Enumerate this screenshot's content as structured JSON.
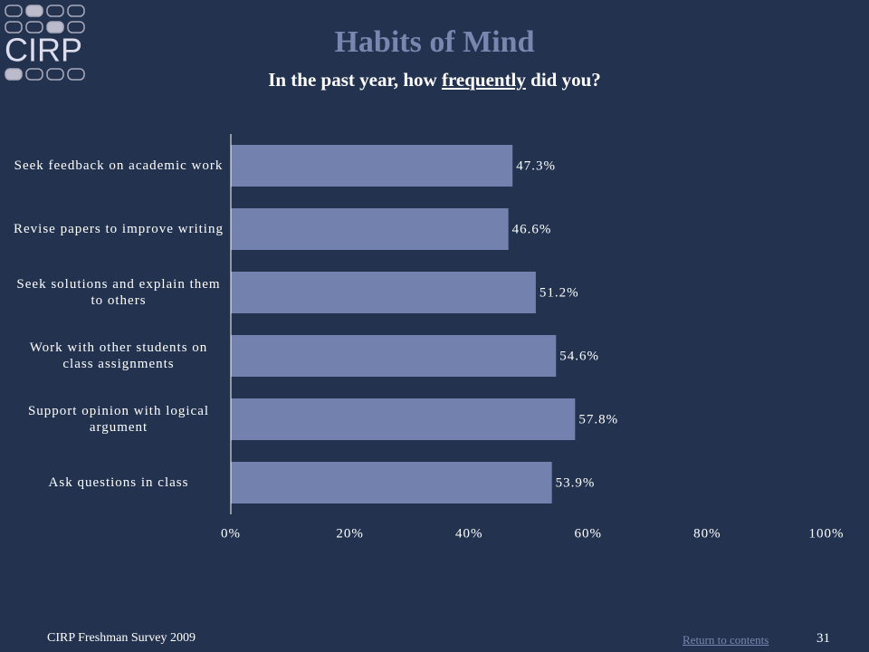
{
  "logo": {
    "text": "CIRP"
  },
  "chart_data": {
    "type": "hbar",
    "title": "Habits of Mind",
    "subtitle": {
      "before": "In the past year, how ",
      "emphasis": "frequently",
      "after": " did you?"
    },
    "categories": [
      "Seek feedback on academic work",
      "Revise papers to improve writing",
      "Seek solutions and explain them to others",
      "Work with other students on class assignments",
      "Support opinion with logical argument",
      "Ask questions in class"
    ],
    "values": [
      47.3,
      46.6,
      51.2,
      54.6,
      57.8,
      53.9
    ],
    "value_labels": [
      "47.3%",
      "46.6%",
      "51.2%",
      "54.6%",
      "57.8%",
      "53.9%"
    ],
    "color": "#7381ae",
    "xlim": [
      0,
      100
    ],
    "xticks": [
      {
        "value": 0,
        "label": "0%"
      },
      {
        "value": 20,
        "label": "20%"
      },
      {
        "value": 40,
        "label": "40%"
      },
      {
        "value": 60,
        "label": "60%"
      },
      {
        "value": 80,
        "label": "80%"
      },
      {
        "value": 100,
        "label": "100%"
      }
    ]
  },
  "footer": {
    "source": "CIRP Freshman Survey 2009",
    "link": "Return to contents",
    "page": "31"
  }
}
